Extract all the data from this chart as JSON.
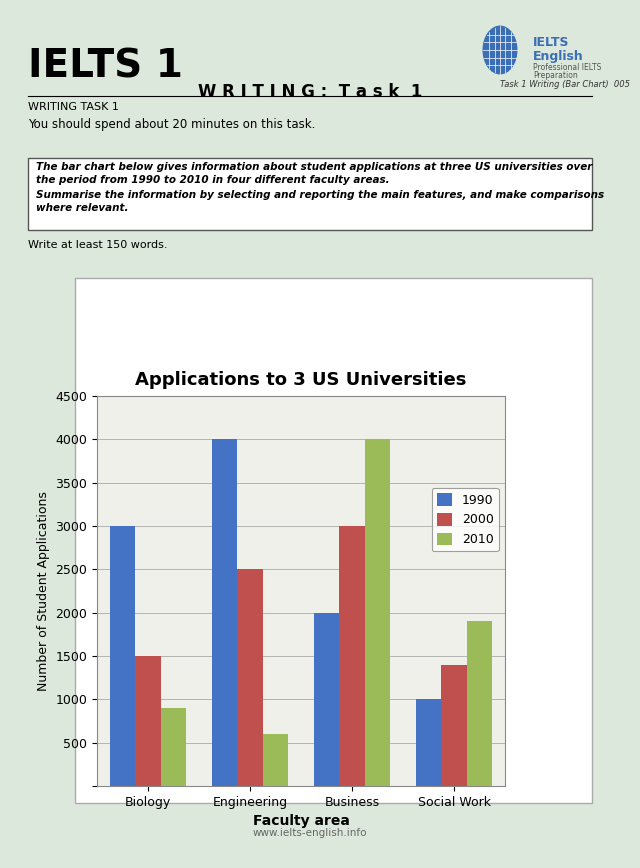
{
  "title": "IELTS 1",
  "subtitle": "W R I T I N G :  T a s k  1",
  "writing_task_label": "WRITING TASK 1",
  "instruction": "You should spend about 20 minutes on this task.",
  "box_line1": "The bar chart below gives information about student applications at three US universities over",
  "box_line2": "the period from 1990 to 2010 in four different faculty areas.",
  "box_line3": "Summarise the information by selecting and reporting the main features, and make comparisons",
  "box_line4": "where relevant.",
  "write_note": "Write at least 150 words.",
  "footer": "www.ielts-english.info",
  "chart_title": "Applications to 3 US Universities",
  "xlabel": "Faculty area",
  "ylabel": "Number of Student Applications",
  "categories": [
    "Biology",
    "Engineering",
    "Business",
    "Social Work"
  ],
  "series_1990": [
    3000,
    4000,
    2000,
    1000
  ],
  "series_2000": [
    1500,
    2500,
    3000,
    1400
  ],
  "series_2010": [
    900,
    600,
    4000,
    1900
  ],
  "color_1990": "#4472C4",
  "color_2000": "#C0504D",
  "color_2010": "#9BBB59",
  "ylim": [
    0,
    4500
  ],
  "yticks": [
    0,
    500,
    1000,
    1500,
    2000,
    2500,
    3000,
    3500,
    4000,
    4500
  ],
  "page_bg": "#dce8dc",
  "chart_bg": "#f0f0ea",
  "task_ref": "Task 1 Writing (Bar Chart)  005",
  "logo_text1": "IELTS",
  "logo_text2": "English",
  "logo_sub1": "Professional IELTS",
  "logo_sub2": "Preparation"
}
